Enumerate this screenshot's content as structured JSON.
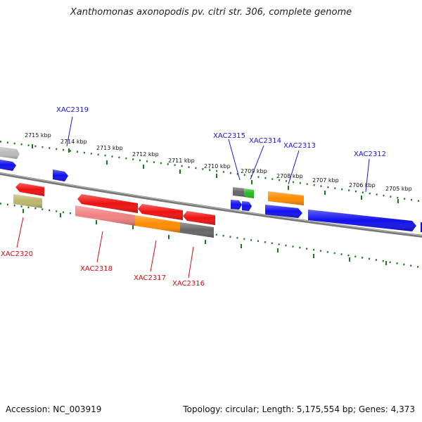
{
  "title": "Xanthomonas axonopodis pv. citri str. 306, complete genome",
  "footer": {
    "accession": "Accession: NC_003919",
    "summary": "Topology: circular; Length: 5,175,554 bp; Genes: 4,373"
  },
  "ticks": [
    {
      "label": "2715 kbp"
    },
    {
      "label": "2714 kbp"
    },
    {
      "label": "2713 kbp"
    },
    {
      "label": "2712 kbp"
    },
    {
      "label": "2711 kbp"
    },
    {
      "label": "2710 kbp"
    },
    {
      "label": "2709 kbp"
    },
    {
      "label": "2708 kbp"
    },
    {
      "label": "2707 kbp"
    },
    {
      "label": "2706 kbp"
    },
    {
      "label": "2705 kbp"
    }
  ],
  "genes_top": [
    {
      "label": "XAC2319",
      "color": "#1a1acc"
    },
    {
      "label": "XAC2315",
      "color": "#1a1acc"
    },
    {
      "label": "XAC2314",
      "color": "#1a1acc"
    },
    {
      "label": "XAC2313",
      "color": "#1a1acc"
    },
    {
      "label": "XAC2312",
      "color": "#1a1acc"
    }
  ],
  "genes_bottom": [
    {
      "label": "XAC2320",
      "color": "#cc1111"
    },
    {
      "label": "XAC2318",
      "color": "#cc1111"
    },
    {
      "label": "XAC2317",
      "color": "#cc1111"
    },
    {
      "label": "XAC2316",
      "color": "#cc1111"
    }
  ],
  "feature_colors": {
    "forward": "#1010ee",
    "reverse": "#ee1111",
    "pink": "#f08080",
    "orange": "#ff8c00",
    "gray": "#666666",
    "green": "#22bb22",
    "olive": "#bdb76b",
    "lightgray": "#bbbbbb",
    "tick": "#1a7a1a",
    "backbone": "#777777"
  }
}
